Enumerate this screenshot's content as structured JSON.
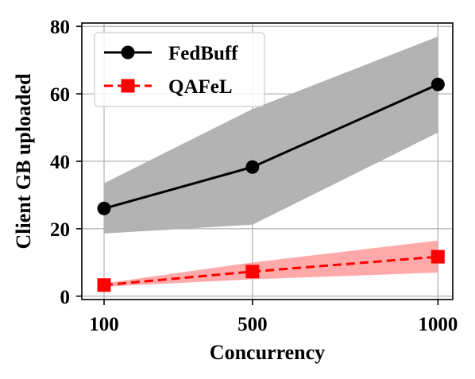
{
  "chart_data": {
    "type": "line",
    "title": "",
    "xlabel": "Concurrency",
    "ylabel": "Client GB uploaded",
    "x": [
      100,
      500,
      1000
    ],
    "xticks": [
      "100",
      "500",
      "1000"
    ],
    "xlim": [
      40,
      1040
    ],
    "ylim": [
      -1,
      81
    ],
    "yticks": [
      0,
      20,
      40,
      60,
      80
    ],
    "grid": true,
    "legend_position": "top-left",
    "series": [
      {
        "name": "FedBuff",
        "values": [
          26,
          38.3,
          62.8
        ],
        "band_lower": [
          18.6,
          21.2,
          48.5
        ],
        "band_upper": [
          33.5,
          55.5,
          77
        ],
        "color": "#000000",
        "band_color": "#b3b3b3",
        "line_style": "solid",
        "marker": "circle"
      },
      {
        "name": "QAFeL",
        "values": [
          3.3,
          7.3,
          11.7
        ],
        "band_lower": [
          2.8,
          5,
          7
        ],
        "band_upper": [
          3.8,
          10,
          16.5
        ],
        "color": "#ff0000",
        "band_color": "#ffaaaa",
        "line_style": "dashed",
        "marker": "square"
      }
    ]
  }
}
